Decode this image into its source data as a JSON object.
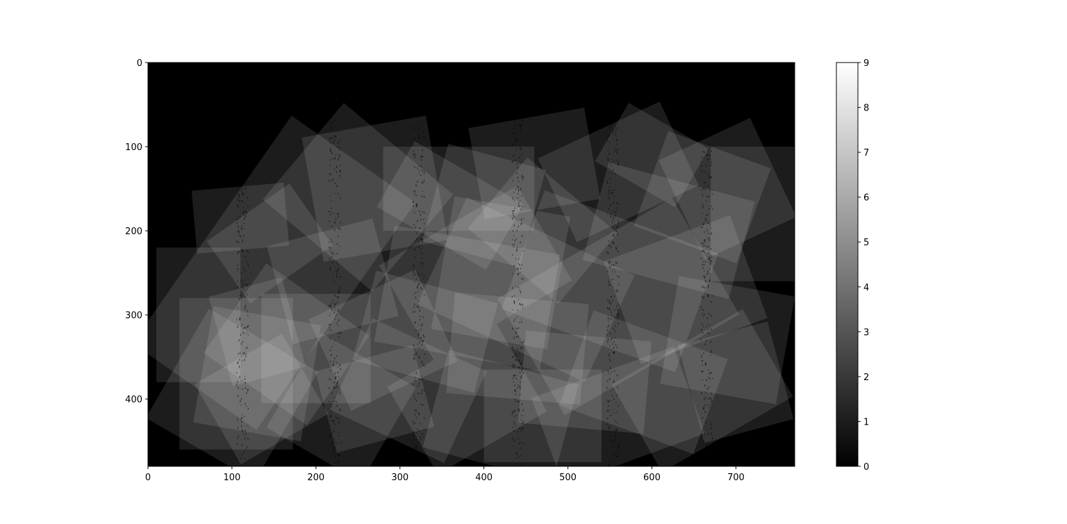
{
  "chart_data": {
    "type": "heatmap",
    "title": "",
    "xlabel": "",
    "ylabel": "",
    "colormap": "gray",
    "image_width": 770,
    "image_height": 480,
    "xlim": [
      0,
      770
    ],
    "ylim": [
      480,
      0
    ],
    "x_ticks": [
      0,
      100,
      200,
      300,
      400,
      500,
      600,
      700
    ],
    "y_ticks": [
      0,
      100,
      200,
      300,
      400
    ],
    "x_tick_labels": [
      "0",
      "100",
      "200",
      "300",
      "400",
      "500",
      "600",
      "700"
    ],
    "y_tick_labels": [
      "0",
      "100",
      "200",
      "300",
      "400"
    ],
    "colorbar": {
      "range": [
        0,
        9
      ],
      "ticks": [
        0,
        1,
        2,
        3,
        4,
        5,
        6,
        7,
        8,
        9
      ],
      "tick_labels": [
        "0",
        "1",
        "2",
        "3",
        "4",
        "5",
        "6",
        "7",
        "8",
        "9"
      ]
    },
    "description_values": "Overlap count of ~60 rotated rectangular tiles; each tile adds 1 to the count; values range 0-9",
    "tiles": [
      {
        "cx": 150,
        "cy": 250,
        "w": 180,
        "h": 330,
        "angle": 35
      },
      {
        "cx": 110,
        "cy": 185,
        "w": 110,
        "h": 75,
        "angle": -5
      },
      {
        "cx": 145,
        "cy": 215,
        "w": 120,
        "h": 90,
        "angle": -35
      },
      {
        "cx": 105,
        "cy": 370,
        "w": 135,
        "h": 180,
        "angle": 0
      },
      {
        "cx": 130,
        "cy": 370,
        "w": 130,
        "h": 140,
        "angle": 10
      },
      {
        "cx": 135,
        "cy": 400,
        "w": 120,
        "h": 110,
        "angle": -30
      },
      {
        "cx": 165,
        "cy": 335,
        "w": 150,
        "h": 130,
        "angle": 35
      },
      {
        "cx": 100,
        "cy": 395,
        "w": 150,
        "h": 150,
        "angle": 30
      },
      {
        "cx": 130,
        "cy": 320,
        "w": 90,
        "h": 110,
        "angle": -15
      },
      {
        "cx": 270,
        "cy": 150,
        "w": 150,
        "h": 150,
        "angle": -10
      },
      {
        "cx": 250,
        "cy": 160,
        "w": 170,
        "h": 150,
        "angle": 40
      },
      {
        "cx": 370,
        "cy": 150,
        "w": 180,
        "h": 100,
        "angle": 0
      },
      {
        "cx": 360,
        "cy": 170,
        "w": 150,
        "h": 90,
        "angle": 30
      },
      {
        "cx": 460,
        "cy": 120,
        "w": 140,
        "h": 110,
        "angle": -10
      },
      {
        "cx": 560,
        "cy": 130,
        "w": 160,
        "h": 110,
        "angle": -25
      },
      {
        "cx": 600,
        "cy": 110,
        "w": 110,
        "h": 80,
        "angle": 30
      },
      {
        "cx": 690,
        "cy": 150,
        "w": 120,
        "h": 130,
        "angle": -25
      },
      {
        "cx": 660,
        "cy": 160,
        "w": 130,
        "h": 120,
        "angle": 20
      },
      {
        "cx": 720,
        "cy": 180,
        "w": 100,
        "h": 160,
        "angle": 0
      },
      {
        "cx": 400,
        "cy": 170,
        "w": 120,
        "h": 120,
        "angle": 15
      },
      {
        "cx": 390,
        "cy": 250,
        "w": 190,
        "h": 130,
        "angle": -30
      },
      {
        "cx": 420,
        "cy": 250,
        "w": 140,
        "h": 160,
        "angle": 10
      },
      {
        "cx": 380,
        "cy": 280,
        "w": 200,
        "h": 140,
        "angle": 10
      },
      {
        "cx": 450,
        "cy": 270,
        "w": 220,
        "h": 140,
        "angle": 25
      },
      {
        "cx": 560,
        "cy": 290,
        "w": 240,
        "h": 160,
        "angle": -30
      },
      {
        "cx": 550,
        "cy": 260,
        "w": 220,
        "h": 150,
        "angle": 20
      },
      {
        "cx": 640,
        "cy": 270,
        "w": 160,
        "h": 130,
        "angle": -20
      },
      {
        "cx": 690,
        "cy": 330,
        "w": 140,
        "h": 130,
        "angle": 10
      },
      {
        "cx": 700,
        "cy": 380,
        "w": 110,
        "h": 120,
        "angle": -15
      },
      {
        "cx": 660,
        "cy": 390,
        "w": 180,
        "h": 120,
        "angle": -30
      },
      {
        "cx": 590,
        "cy": 380,
        "w": 170,
        "h": 120,
        "angle": 20
      },
      {
        "cx": 560,
        "cy": 420,
        "w": 180,
        "h": 110,
        "angle": -20
      },
      {
        "cx": 520,
        "cy": 380,
        "w": 150,
        "h": 110,
        "angle": 5
      },
      {
        "cx": 470,
        "cy": 420,
        "w": 140,
        "h": 110,
        "angle": 0
      },
      {
        "cx": 420,
        "cy": 420,
        "w": 160,
        "h": 120,
        "angle": 15
      },
      {
        "cx": 380,
        "cy": 400,
        "w": 150,
        "h": 120,
        "angle": -30
      },
      {
        "cx": 310,
        "cy": 390,
        "w": 150,
        "h": 120,
        "angle": 25
      },
      {
        "cx": 270,
        "cy": 400,
        "w": 120,
        "h": 100,
        "angle": -15
      },
      {
        "cx": 230,
        "cy": 410,
        "w": 130,
        "h": 130,
        "angle": 30
      },
      {
        "cx": 200,
        "cy": 340,
        "w": 130,
        "h": 130,
        "angle": 0
      },
      {
        "cx": 280,
        "cy": 330,
        "w": 140,
        "h": 120,
        "angle": -25
      },
      {
        "cx": 330,
        "cy": 320,
        "w": 150,
        "h": 110,
        "angle": 15
      },
      {
        "cx": 440,
        "cy": 340,
        "w": 160,
        "h": 120,
        "angle": 5
      },
      {
        "cx": 220,
        "cy": 260,
        "w": 130,
        "h": 120,
        "angle": -15
      },
      {
        "cx": 60,
        "cy": 300,
        "w": 100,
        "h": 160,
        "angle": 0
      },
      {
        "cx": 470,
        "cy": 200,
        "w": 140,
        "h": 110,
        "angle": 40
      },
      {
        "cx": 620,
        "cy": 200,
        "w": 180,
        "h": 120,
        "angle": 15
      }
    ],
    "streaks_x": [
      112,
      222,
      322,
      440,
      553,
      665
    ]
  }
}
